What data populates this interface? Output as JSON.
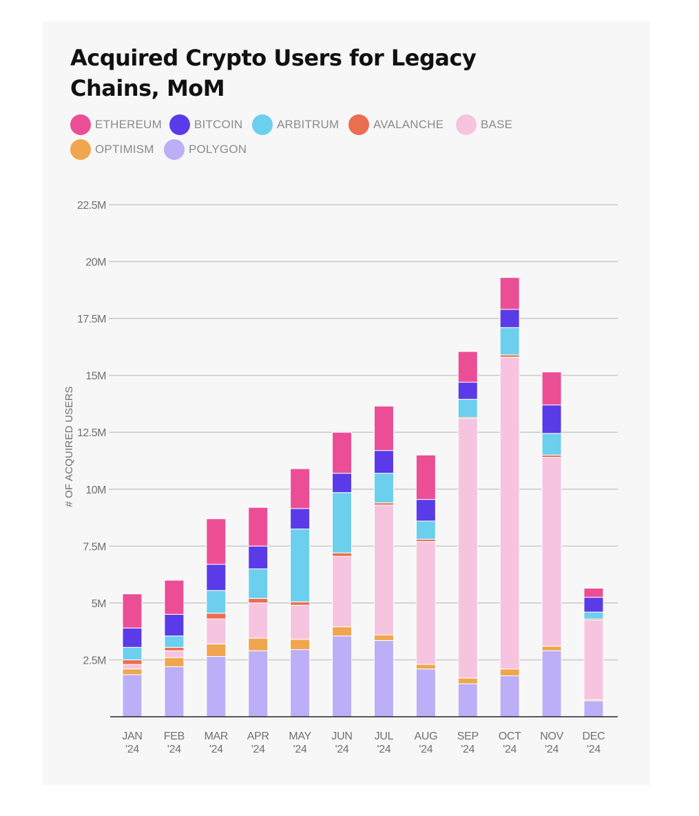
{
  "chart_data": {
    "type": "bar",
    "stacked": true,
    "title": "Acquired Crypto Users for Legacy Chains, MoM",
    "ylabel": "# OF ACQUIRED USERS",
    "xlabel": "",
    "ylim": [
      0,
      22500000
    ],
    "grid": true,
    "legend_position": "top-left",
    "y_ticks": [
      {
        "value": 2500000,
        "label": "2.5M"
      },
      {
        "value": 5000000,
        "label": "5M"
      },
      {
        "value": 7500000,
        "label": "7.5M"
      },
      {
        "value": 10000000,
        "label": "10M"
      },
      {
        "value": 12500000,
        "label": "12.5M"
      },
      {
        "value": 15000000,
        "label": "15M"
      },
      {
        "value": 17500000,
        "label": "17.5M"
      },
      {
        "value": 20000000,
        "label": "20M"
      },
      {
        "value": 22500000,
        "label": "22.5M"
      }
    ],
    "categories": [
      {
        "month": "JAN",
        "year": "'24"
      },
      {
        "month": "FEB",
        "year": "'24"
      },
      {
        "month": "MAR",
        "year": "'24"
      },
      {
        "month": "APR",
        "year": "'24"
      },
      {
        "month": "MAY",
        "year": "'24"
      },
      {
        "month": "JUN",
        "year": "'24"
      },
      {
        "month": "JUL",
        "year": "'24"
      },
      {
        "month": "AUG",
        "year": "'24"
      },
      {
        "month": "SEP",
        "year": "'24"
      },
      {
        "month": "OCT",
        "year": "'24"
      },
      {
        "month": "NOV",
        "year": "'24"
      },
      {
        "month": "DEC",
        "year": "'24"
      }
    ],
    "series": [
      {
        "name": "POLYGON",
        "color": "#bcaef7",
        "values": [
          1850000,
          2200000,
          2650000,
          2900000,
          2950000,
          3550000,
          3350000,
          2100000,
          1450000,
          1800000,
          2900000,
          700000
        ]
      },
      {
        "name": "OPTIMISM",
        "color": "#f0a64e",
        "values": [
          250000,
          400000,
          550000,
          550000,
          450000,
          400000,
          250000,
          200000,
          250000,
          300000,
          200000,
          50000
        ]
      },
      {
        "name": "BASE",
        "color": "#f6c4de",
        "values": [
          200000,
          300000,
          1100000,
          1550000,
          1500000,
          3100000,
          5700000,
          5400000,
          11400000,
          13700000,
          8300000,
          3500000
        ]
      },
      {
        "name": "AVALANCHE",
        "color": "#ea6e4f",
        "values": [
          200000,
          150000,
          250000,
          200000,
          150000,
          150000,
          100000,
          100000,
          50000,
          100000,
          100000,
          50000
        ]
      },
      {
        "name": "ARBITRUM",
        "color": "#6ccfee",
        "values": [
          550000,
          500000,
          1000000,
          1300000,
          3200000,
          2650000,
          1300000,
          800000,
          800000,
          1200000,
          950000,
          300000
        ]
      },
      {
        "name": "BITCOIN",
        "color": "#5b3be8",
        "values": [
          850000,
          950000,
          1150000,
          1000000,
          900000,
          850000,
          1000000,
          950000,
          750000,
          800000,
          1250000,
          650000
        ]
      },
      {
        "name": "ETHEREUM",
        "color": "#ec4e95",
        "values": [
          1500000,
          1500000,
          2000000,
          1700000,
          1750000,
          1800000,
          1950000,
          1950000,
          1350000,
          1400000,
          1450000,
          400000
        ]
      }
    ]
  },
  "legend": [
    {
      "label": "ETHEREUM",
      "color": "#ec4e95"
    },
    {
      "label": "BITCOIN",
      "color": "#5b3be8"
    },
    {
      "label": "ARBITRUM",
      "color": "#6ccfee"
    },
    {
      "label": "AVALANCHE",
      "color": "#ea6e4f"
    },
    {
      "label": "BASE",
      "color": "#f6c4de"
    },
    {
      "label": "OPTIMISM",
      "color": "#f0a64e"
    },
    {
      "label": "POLYGON",
      "color": "#bcaef7"
    }
  ]
}
